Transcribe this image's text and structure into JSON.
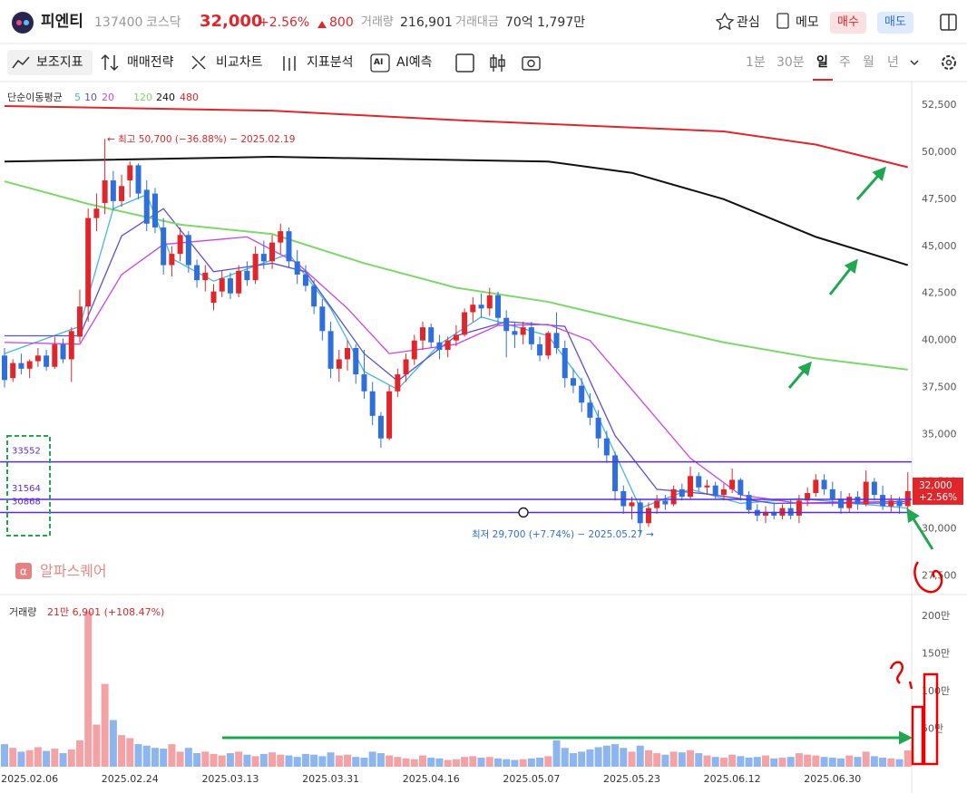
{
  "header": {
    "name": "피엔티",
    "code": "137400",
    "market": "코스닥",
    "price": "32,000",
    "change": "+2.56%",
    "delta": "800",
    "volume_label": "거래량",
    "volume": "216,901",
    "amount_label": "거래대금",
    "amount": "70억 1,797만",
    "buttons": [
      "관심",
      "메모",
      "매수",
      "매도"
    ]
  },
  "toolbar": {
    "items": [
      "보조지표",
      "매매전략",
      "비교차트",
      "지표분석",
      "AI예측"
    ],
    "ai_icon": "AI",
    "periods": [
      "1분",
      "30분",
      "일",
      "주",
      "월",
      "년"
    ]
  },
  "watermark": "알파스퀘어",
  "chart_data": [
    {
      "type": "candlestick",
      "legend_title": "단순이동평균",
      "up_color": "#e0262b",
      "down_color": "#2f6fdc",
      "ylim": [
        26800,
        53650
      ],
      "yticks": [
        {
          "value": 27500,
          "label": "27,500"
        },
        {
          "value": 30000,
          "label": "30,000"
        },
        {
          "value": 32500,
          "label": "32,500"
        },
        {
          "value": 35000,
          "label": "35,000"
        },
        {
          "value": 37500,
          "label": "37,500"
        },
        {
          "value": 40000,
          "label": "40,000"
        },
        {
          "value": 42500,
          "label": "42,500"
        },
        {
          "value": 45000,
          "label": "45,000"
        },
        {
          "value": 47500,
          "label": "47,500"
        },
        {
          "value": 50000,
          "label": "50,000"
        },
        {
          "value": 52500,
          "label": "52,500"
        }
      ],
      "candles": [
        [
          39200,
          39600,
          37500,
          37900
        ],
        [
          38000,
          39000,
          37800,
          38800
        ],
        [
          38800,
          39300,
          38200,
          38500
        ],
        [
          38500,
          39000,
          38000,
          38900
        ],
        [
          38900,
          39600,
          38600,
          39200
        ],
        [
          39200,
          39500,
          38400,
          38600
        ],
        [
          38600,
          40200,
          38500,
          39800
        ],
        [
          39800,
          40100,
          38800,
          39000
        ],
        [
          39000,
          40700,
          37800,
          40500
        ],
        [
          40200,
          42700,
          39900,
          41800
        ],
        [
          41800,
          47000,
          41000,
          46500
        ],
        [
          46500,
          47800,
          45800,
          47000
        ],
        [
          47300,
          50700,
          46700,
          48500
        ],
        [
          48500,
          49000,
          46900,
          47400
        ],
        [
          47400,
          48800,
          47100,
          48200
        ],
        [
          48500,
          49500,
          47600,
          49300
        ],
        [
          49300,
          49400,
          47500,
          47800
        ],
        [
          48000,
          48500,
          45800,
          46200
        ],
        [
          47800,
          48100,
          45700,
          46000
        ],
        [
          46000,
          46500,
          43500,
          44000
        ],
        [
          44000,
          45000,
          43400,
          44600
        ],
        [
          44600,
          46000,
          44200,
          45600
        ],
        [
          45600,
          45800,
          43600,
          44000
        ],
        [
          44000,
          44300,
          42800,
          43200
        ],
        [
          43200,
          44000,
          42600,
          43600
        ],
        [
          42000,
          43000,
          41600,
          42600
        ],
        [
          42600,
          43700,
          42300,
          43300
        ],
        [
          43300,
          43600,
          42200,
          42500
        ],
        [
          42500,
          44000,
          42300,
          43700
        ],
        [
          43700,
          44200,
          42900,
          43200
        ],
        [
          43200,
          45000,
          43000,
          44600
        ],
        [
          44600,
          45300,
          43800,
          44200
        ],
        [
          44200,
          45600,
          43800,
          45200
        ],
        [
          45200,
          46200,
          44600,
          45800
        ],
        [
          45800,
          46000,
          43900,
          44200
        ],
        [
          44200,
          44800,
          43000,
          43500
        ],
        [
          43500,
          44000,
          42600,
          42900
        ],
        [
          42900,
          43200,
          41400,
          41800
        ],
        [
          41800,
          42200,
          40000,
          40500
        ],
        [
          40500,
          41000,
          38000,
          38500
        ],
        [
          38500,
          39500,
          37800,
          39000
        ],
        [
          39000,
          40000,
          38400,
          39600
        ],
        [
          39600,
          39800,
          37700,
          38200
        ],
        [
          38200,
          39500,
          36900,
          37300
        ],
        [
          37300,
          37800,
          35500,
          36000
        ],
        [
          36000,
          36200,
          34300,
          34800
        ],
        [
          34800,
          37600,
          34700,
          37300
        ],
        [
          37300,
          38500,
          37000,
          38200
        ],
        [
          38200,
          39300,
          37800,
          39000
        ],
        [
          39000,
          40300,
          38700,
          40000
        ],
        [
          40000,
          41000,
          39500,
          40700
        ],
        [
          40700,
          40900,
          39600,
          39900
        ],
        [
          39900,
          40300,
          39000,
          39500
        ],
        [
          39500,
          40200,
          39100,
          40000
        ],
        [
          40000,
          40800,
          39700,
          40300
        ],
        [
          40300,
          41700,
          40200,
          41500
        ],
        [
          41500,
          42300,
          41000,
          41900
        ],
        [
          41900,
          42500,
          41200,
          41700
        ],
        [
          41700,
          42800,
          41300,
          42400
        ],
        [
          42400,
          42600,
          40900,
          41200
        ],
        [
          41200,
          41600,
          39100,
          40500
        ],
        [
          40500,
          41000,
          39600,
          40300
        ],
        [
          40300,
          41000,
          39800,
          40700
        ],
        [
          40700,
          41000,
          39500,
          39800
        ],
        [
          39800,
          40200,
          38900,
          39200
        ],
        [
          39200,
          40500,
          39000,
          40400
        ],
        [
          40400,
          41500,
          39300,
          39600
        ],
        [
          39600,
          40000,
          37500,
          38000
        ],
        [
          38000,
          38500,
          37200,
          37600
        ],
        [
          37600,
          38000,
          36200,
          36700
        ],
        [
          36700,
          37200,
          35500,
          35900
        ],
        [
          35900,
          36300,
          34300,
          34800
        ],
        [
          34800,
          35200,
          33500,
          33900
        ],
        [
          33900,
          34100,
          31500,
          32000
        ],
        [
          32000,
          32300,
          30800,
          31200
        ],
        [
          31200,
          31700,
          30500,
          31400
        ],
        [
          31400,
          31600,
          29700,
          30300
        ],
        [
          30300,
          31400,
          30100,
          31100
        ],
        [
          31100,
          31800,
          30800,
          31500
        ],
        [
          31500,
          31800,
          31000,
          31300
        ],
        [
          31300,
          32300,
          31200,
          32100
        ],
        [
          32100,
          32400,
          31500,
          31700
        ],
        [
          31700,
          33300,
          31600,
          32800
        ],
        [
          32800,
          33000,
          32000,
          32200
        ],
        [
          32200,
          32600,
          31800,
          32300
        ],
        [
          32300,
          32500,
          31600,
          31800
        ],
        [
          31800,
          32400,
          31500,
          32100
        ],
        [
          32100,
          33200,
          31900,
          32600
        ],
        [
          32600,
          32700,
          31500,
          31800
        ],
        [
          31800,
          32000,
          30800,
          31000
        ],
        [
          31000,
          31300,
          30400,
          30700
        ],
        [
          30700,
          31200,
          30300,
          30900
        ],
        [
          30900,
          31400,
          30500,
          30700
        ],
        [
          30700,
          31300,
          30500,
          31100
        ],
        [
          31100,
          31600,
          30500,
          30700
        ],
        [
          30700,
          31800,
          30300,
          31500
        ],
        [
          31500,
          32200,
          31200,
          31900
        ],
        [
          31900,
          32900,
          31700,
          32600
        ],
        [
          32600,
          32900,
          31800,
          32100
        ],
        [
          32100,
          32500,
          31200,
          31600
        ],
        [
          31600,
          32000,
          30800,
          31100
        ],
        [
          31100,
          31900,
          30900,
          31700
        ],
        [
          31700,
          32000,
          31000,
          31300
        ],
        [
          31300,
          33100,
          31200,
          32500
        ],
        [
          32500,
          32700,
          31500,
          31800
        ],
        [
          31800,
          32300,
          31000,
          31200
        ],
        [
          31200,
          31800,
          30900,
          31500
        ],
        [
          31500,
          31700,
          30800,
          31200
        ],
        [
          31200,
          33000,
          31000,
          32000
        ]
      ],
      "series": [
        {
          "name": "5",
          "color": "#45b6e6",
          "x": [
            0,
            9,
            13,
            17,
            20,
            25,
            34,
            39,
            43,
            47,
            52,
            57,
            65,
            69,
            73,
            76,
            82,
            88,
            95,
            108
          ],
          "values": [
            39300,
            40750,
            47000,
            47750,
            44350,
            43150,
            44600,
            41700,
            38350,
            37400,
            39800,
            41250,
            40250,
            37850,
            34000,
            31100,
            32100,
            31350,
            31600,
            31100
          ]
        },
        {
          "name": "10",
          "color": "#5b4fd6",
          "x": [
            0,
            9,
            14,
            19,
            25,
            32,
            36,
            43,
            47,
            54,
            60,
            67,
            73,
            78,
            84,
            92,
            108
          ],
          "values": [
            40250,
            40250,
            45550,
            47000,
            43650,
            44100,
            43650,
            39300,
            37850,
            40250,
            41000,
            40750,
            34950,
            32100,
            31850,
            31350,
            31450
          ]
        },
        {
          "name": "20",
          "color": "#cc44e0",
          "x": [
            0,
            9,
            14,
            19,
            29,
            35,
            41,
            46,
            54,
            59,
            65,
            70,
            75,
            82,
            88,
            95,
            108
          ],
          "values": [
            39900,
            39800,
            43500,
            45100,
            45500,
            44100,
            41700,
            39300,
            39800,
            40800,
            40850,
            40000,
            37400,
            33750,
            31800,
            31350,
            31350
          ]
        },
        {
          "name": "120",
          "color": "#7dd86a",
          "x": [
            0,
            10,
            21,
            32,
            43,
            54,
            65,
            75,
            86,
            97,
            108
          ],
          "values": [
            48450,
            47250,
            46150,
            45650,
            44100,
            42800,
            42050,
            41000,
            39900,
            39050,
            38450
          ]
        },
        {
          "name": "240",
          "color": "#111111",
          "x": [
            0,
            32,
            65,
            75,
            86,
            97,
            108
          ],
          "values": [
            49500,
            49750,
            49500,
            48900,
            47500,
            45500,
            44000
          ]
        },
        {
          "name": "480",
          "color": "#e0262b",
          "x": [
            0,
            32,
            54,
            86,
            97,
            108
          ],
          "values": [
            52450,
            52200,
            51700,
            51100,
            50400,
            49200
          ]
        }
      ],
      "hlines": [
        33552,
        31564,
        30868
      ],
      "hline_color": "#5b2be0",
      "high_label": "← 최고 50,700 (−36.88%) − 2025.02.19",
      "low_label": "최저 29,700 (+7.74%) − 2025.05.27 →",
      "last_price": {
        "value": 32000,
        "label": "32,000"
      },
      "last_change": "+2.56%"
    },
    {
      "type": "bar",
      "legend_title": "거래량",
      "last_label": "21만 6,901 (+108.47%)",
      "up_color": "#f3a3a6",
      "down_color": "#8db5ef",
      "ylim": [
        0,
        2240000
      ],
      "yticks": [
        {
          "value": 500000,
          "label": "50만"
        },
        {
          "value": 1000000,
          "label": "100만"
        },
        {
          "value": 1500000,
          "label": "150만"
        },
        {
          "value": 2000000,
          "label": "200만"
        }
      ],
      "categories": [
        null,
        null,
        null,
        "2025.02.06",
        null,
        null,
        null,
        null,
        null,
        null,
        null,
        null,
        null,
        null,
        null,
        "2025.02.24",
        null,
        null,
        null,
        null,
        null,
        null,
        null,
        null,
        null,
        null,
        null,
        "2025.03.13",
        null,
        null,
        null,
        null,
        null,
        null,
        null,
        null,
        null,
        null,
        null,
        "2025.03.31",
        null,
        null,
        null,
        null,
        null,
        null,
        null,
        null,
        null,
        null,
        null,
        "2025.04.16",
        null,
        null,
        null,
        null,
        null,
        null,
        null,
        null,
        null,
        null,
        null,
        "2025.05.07",
        null,
        null,
        null,
        null,
        null,
        null,
        null,
        null,
        null,
        null,
        null,
        "2025.05.23",
        null,
        null,
        null,
        null,
        null,
        null,
        null,
        null,
        null,
        null,
        null,
        "2025.06.12",
        null,
        null,
        null,
        null,
        null,
        null,
        null,
        null,
        null,
        null,
        null,
        "2025.06.30",
        null,
        null,
        null,
        null,
        null,
        null,
        null,
        null,
        null
      ],
      "values": [
        300000,
        250000,
        200000,
        220000,
        260000,
        210000,
        240000,
        180000,
        230000,
        350000,
        2060000,
        560000,
        1100000,
        620000,
        420000,
        380000,
        300000,
        280000,
        250000,
        240000,
        300000,
        200000,
        250000,
        180000,
        200000,
        170000,
        150000,
        180000,
        200000,
        160000,
        140000,
        170000,
        190000,
        160000,
        150000,
        130000,
        170000,
        160000,
        140000,
        190000,
        150000,
        160000,
        130000,
        120000,
        200000,
        180000,
        150000,
        130000,
        110000,
        100000,
        150000,
        120000,
        110000,
        90000,
        100000,
        130000,
        140000,
        120000,
        130000,
        110000,
        100000,
        90000,
        100000,
        110000,
        120000,
        140000,
        350000,
        250000,
        180000,
        200000,
        230000,
        260000,
        280000,
        300000,
        250000,
        200000,
        280000,
        220000,
        180000,
        160000,
        200000,
        190000,
        220000,
        180000,
        150000,
        130000,
        120000,
        160000,
        140000,
        120000,
        130000,
        150000,
        110000,
        120000,
        130000,
        180000,
        160000,
        150000,
        130000,
        120000,
        110000,
        150000,
        130000,
        200000,
        140000,
        120000,
        110000,
        100000,
        216901
      ]
    }
  ]
}
